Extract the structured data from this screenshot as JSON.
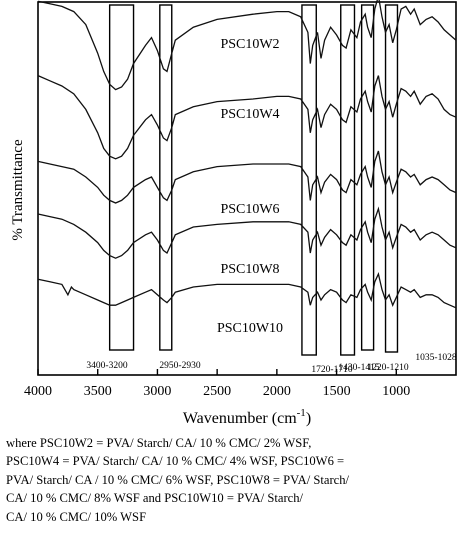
{
  "chart_data": {
    "type": "line",
    "title": "",
    "xlabel": "Wavenumber (cm",
    "xlabel_sup": "-1",
    "xlabel_close": ")",
    "ylabel": "% Transmittance",
    "xlim": [
      4000,
      500
    ],
    "x_reversed": true,
    "yticks_shown": false,
    "grid": false,
    "legend": "none",
    "x_ticks": [
      {
        "value": 4000,
        "label": "4000"
      },
      {
        "value": 3500,
        "label": "3500"
      },
      {
        "value": 3000,
        "label": "3000"
      },
      {
        "value": 2500,
        "label": "2500"
      },
      {
        "value": 2000,
        "label": "2000"
      },
      {
        "value": 1500,
        "label": "1500"
      },
      {
        "value": 1000,
        "label": "1000"
      }
    ],
    "series": [
      {
        "name": "PSC10W2",
        "offset": 6.2,
        "points": [
          [
            4000,
            0.65
          ],
          [
            3900,
            0.6
          ],
          [
            3800,
            0.55
          ],
          [
            3700,
            0.45
          ],
          [
            3600,
            0.2
          ],
          [
            3500,
            -0.35
          ],
          [
            3450,
            -0.7
          ],
          [
            3400,
            -0.95
          ],
          [
            3350,
            -1.05
          ],
          [
            3300,
            -1.0
          ],
          [
            3250,
            -0.85
          ],
          [
            3200,
            -0.55
          ],
          [
            3100,
            -0.2
          ],
          [
            3050,
            -0.05
          ],
          [
            3000,
            -0.3
          ],
          [
            2950,
            -0.65
          ],
          [
            2920,
            -0.7
          ],
          [
            2880,
            -0.35
          ],
          [
            2850,
            -0.1
          ],
          [
            2700,
            0.15
          ],
          [
            2500,
            0.3
          ],
          [
            2200,
            0.4
          ],
          [
            2000,
            0.45
          ],
          [
            1900,
            0.45
          ],
          [
            1800,
            0.35
          ],
          [
            1740,
            0.05
          ],
          [
            1720,
            -0.55
          ],
          [
            1700,
            -0.2
          ],
          [
            1660,
            0.05
          ],
          [
            1630,
            -0.45
          ],
          [
            1600,
            -0.1
          ],
          [
            1550,
            0.15
          ],
          [
            1500,
            0.0
          ],
          [
            1450,
            -0.2
          ],
          [
            1420,
            -0.25
          ],
          [
            1380,
            0.1
          ],
          [
            1330,
            -0.05
          ],
          [
            1300,
            0.25
          ],
          [
            1260,
            0.4
          ],
          [
            1240,
            0.15
          ],
          [
            1210,
            -0.05
          ],
          [
            1180,
            0.5
          ],
          [
            1150,
            0.75
          ],
          [
            1120,
            0.35
          ],
          [
            1090,
            0.05
          ],
          [
            1060,
            0.2
          ],
          [
            1030,
            -0.15
          ],
          [
            1000,
            0.1
          ],
          [
            960,
            0.5
          ],
          [
            920,
            0.55
          ],
          [
            880,
            0.4
          ],
          [
            850,
            0.5
          ],
          [
            800,
            0.2
          ],
          [
            750,
            0.3
          ],
          [
            700,
            0.35
          ],
          [
            650,
            0.25
          ],
          [
            600,
            0.1
          ],
          [
            550,
            0.0
          ],
          [
            500,
            -0.1
          ]
        ]
      },
      {
        "name": "PSC10W4",
        "offset": 4.4,
        "points": [
          [
            4000,
            0.7
          ],
          [
            3900,
            0.6
          ],
          [
            3800,
            0.5
          ],
          [
            3700,
            0.35
          ],
          [
            3600,
            0.05
          ],
          [
            3500,
            -0.4
          ],
          [
            3450,
            -0.7
          ],
          [
            3400,
            -0.85
          ],
          [
            3350,
            -0.9
          ],
          [
            3300,
            -0.85
          ],
          [
            3250,
            -0.7
          ],
          [
            3200,
            -0.45
          ],
          [
            3100,
            -0.15
          ],
          [
            3050,
            -0.05
          ],
          [
            3000,
            -0.25
          ],
          [
            2950,
            -0.5
          ],
          [
            2920,
            -0.55
          ],
          [
            2880,
            -0.3
          ],
          [
            2850,
            -0.05
          ],
          [
            2700,
            0.1
          ],
          [
            2500,
            0.2
          ],
          [
            2200,
            0.25
          ],
          [
            2000,
            0.3
          ],
          [
            1900,
            0.3
          ],
          [
            1800,
            0.25
          ],
          [
            1740,
            0.05
          ],
          [
            1720,
            -0.4
          ],
          [
            1700,
            -0.15
          ],
          [
            1660,
            0.05
          ],
          [
            1630,
            -0.3
          ],
          [
            1600,
            -0.05
          ],
          [
            1550,
            0.15
          ],
          [
            1500,
            0.05
          ],
          [
            1450,
            -0.15
          ],
          [
            1420,
            -0.2
          ],
          [
            1380,
            0.1
          ],
          [
            1330,
            0.0
          ],
          [
            1300,
            0.25
          ],
          [
            1260,
            0.4
          ],
          [
            1240,
            0.2
          ],
          [
            1210,
            0.0
          ],
          [
            1180,
            0.5
          ],
          [
            1150,
            0.7
          ],
          [
            1120,
            0.3
          ],
          [
            1090,
            0.05
          ],
          [
            1060,
            0.2
          ],
          [
            1030,
            -0.1
          ],
          [
            1000,
            0.15
          ],
          [
            960,
            0.45
          ],
          [
            920,
            0.4
          ],
          [
            880,
            0.3
          ],
          [
            850,
            0.4
          ],
          [
            800,
            0.15
          ],
          [
            750,
            0.3
          ],
          [
            700,
            0.35
          ],
          [
            650,
            0.25
          ],
          [
            600,
            0.05
          ],
          [
            550,
            -0.05
          ],
          [
            500,
            -0.1
          ]
        ]
      },
      {
        "name": "PSC10W6",
        "offset": 2.9,
        "points": [
          [
            4000,
            0.55
          ],
          [
            3900,
            0.5
          ],
          [
            3800,
            0.45
          ],
          [
            3700,
            0.4
          ],
          [
            3600,
            0.25
          ],
          [
            3500,
            0.05
          ],
          [
            3450,
            -0.1
          ],
          [
            3400,
            -0.2
          ],
          [
            3350,
            -0.25
          ],
          [
            3300,
            -0.2
          ],
          [
            3250,
            -0.1
          ],
          [
            3200,
            0.05
          ],
          [
            3100,
            0.2
          ],
          [
            3050,
            0.25
          ],
          [
            3000,
            0.05
          ],
          [
            2950,
            -0.15
          ],
          [
            2920,
            -0.2
          ],
          [
            2880,
            0.0
          ],
          [
            2850,
            0.2
          ],
          [
            2700,
            0.35
          ],
          [
            2500,
            0.45
          ],
          [
            2200,
            0.5
          ],
          [
            2000,
            0.5
          ],
          [
            1900,
            0.5
          ],
          [
            1800,
            0.45
          ],
          [
            1740,
            0.25
          ],
          [
            1720,
            -0.2
          ],
          [
            1700,
            0.1
          ],
          [
            1660,
            0.25
          ],
          [
            1630,
            -0.05
          ],
          [
            1600,
            0.15
          ],
          [
            1550,
            0.3
          ],
          [
            1500,
            0.2
          ],
          [
            1450,
            0.0
          ],
          [
            1420,
            -0.05
          ],
          [
            1380,
            0.2
          ],
          [
            1330,
            0.1
          ],
          [
            1300,
            0.3
          ],
          [
            1260,
            0.45
          ],
          [
            1240,
            0.25
          ],
          [
            1210,
            0.05
          ],
          [
            1180,
            0.55
          ],
          [
            1150,
            0.75
          ],
          [
            1120,
            0.35
          ],
          [
            1090,
            0.1
          ],
          [
            1060,
            0.25
          ],
          [
            1030,
            -0.05
          ],
          [
            1000,
            0.15
          ],
          [
            960,
            0.4
          ],
          [
            920,
            0.35
          ],
          [
            880,
            0.25
          ],
          [
            850,
            0.3
          ],
          [
            800,
            0.1
          ],
          [
            750,
            0.2
          ],
          [
            700,
            0.25
          ],
          [
            650,
            0.2
          ],
          [
            600,
            0.1
          ],
          [
            550,
            0.0
          ],
          [
            500,
            -0.05
          ]
        ]
      },
      {
        "name": "PSC10W8",
        "offset": 1.6,
        "points": [
          [
            4000,
            0.5
          ],
          [
            3900,
            0.45
          ],
          [
            3800,
            0.4
          ],
          [
            3700,
            0.3
          ],
          [
            3600,
            0.15
          ],
          [
            3500,
            -0.05
          ],
          [
            3450,
            -0.2
          ],
          [
            3400,
            -0.3
          ],
          [
            3350,
            -0.35
          ],
          [
            3300,
            -0.3
          ],
          [
            3250,
            -0.2
          ],
          [
            3200,
            -0.05
          ],
          [
            3100,
            0.1
          ],
          [
            3050,
            0.15
          ],
          [
            3000,
            0.0
          ],
          [
            2950,
            -0.2
          ],
          [
            2920,
            -0.25
          ],
          [
            2880,
            -0.05
          ],
          [
            2850,
            0.1
          ],
          [
            2700,
            0.25
          ],
          [
            2500,
            0.3
          ],
          [
            2200,
            0.35
          ],
          [
            2000,
            0.35
          ],
          [
            1900,
            0.35
          ],
          [
            1800,
            0.3
          ],
          [
            1740,
            0.15
          ],
          [
            1720,
            -0.25
          ],
          [
            1700,
            0.0
          ],
          [
            1660,
            0.15
          ],
          [
            1630,
            -0.1
          ],
          [
            1600,
            0.05
          ],
          [
            1550,
            0.2
          ],
          [
            1500,
            0.1
          ],
          [
            1450,
            -0.05
          ],
          [
            1420,
            -0.1
          ],
          [
            1380,
            0.1
          ],
          [
            1330,
            0.0
          ],
          [
            1300,
            0.2
          ],
          [
            1260,
            0.35
          ],
          [
            1240,
            0.15
          ],
          [
            1210,
            -0.05
          ],
          [
            1180,
            0.4
          ],
          [
            1150,
            0.6
          ],
          [
            1120,
            0.25
          ],
          [
            1090,
            0.0
          ],
          [
            1060,
            0.15
          ],
          [
            1030,
            -0.15
          ],
          [
            1000,
            0.05
          ],
          [
            960,
            0.3
          ],
          [
            920,
            0.25
          ],
          [
            880,
            0.15
          ],
          [
            850,
            0.2
          ],
          [
            800,
            0.0
          ],
          [
            750,
            0.1
          ],
          [
            700,
            0.15
          ],
          [
            650,
            0.1
          ],
          [
            600,
            0.0
          ],
          [
            550,
            -0.1
          ],
          [
            500,
            -0.15
          ]
        ]
      },
      {
        "name": "PSC10W10",
        "offset": 0.4,
        "points": [
          [
            4000,
            0.4
          ],
          [
            3900,
            0.35
          ],
          [
            3800,
            0.3
          ],
          [
            3750,
            0.1
          ],
          [
            3720,
            0.25
          ],
          [
            3700,
            0.2
          ],
          [
            3600,
            0.1
          ],
          [
            3500,
            0.0
          ],
          [
            3450,
            -0.05
          ],
          [
            3400,
            -0.1
          ],
          [
            3350,
            -0.1
          ],
          [
            3300,
            -0.05
          ],
          [
            3250,
            0.0
          ],
          [
            3200,
            0.05
          ],
          [
            3100,
            0.15
          ],
          [
            3050,
            0.2
          ],
          [
            3000,
            0.1
          ],
          [
            2950,
            0.0
          ],
          [
            2920,
            -0.05
          ],
          [
            2880,
            0.05
          ],
          [
            2850,
            0.15
          ],
          [
            2700,
            0.25
          ],
          [
            2500,
            0.3
          ],
          [
            2200,
            0.3
          ],
          [
            2000,
            0.3
          ],
          [
            1900,
            0.3
          ],
          [
            1800,
            0.25
          ],
          [
            1740,
            0.15
          ],
          [
            1720,
            -0.1
          ],
          [
            1700,
            0.05
          ],
          [
            1660,
            0.15
          ],
          [
            1630,
            0.0
          ],
          [
            1600,
            0.1
          ],
          [
            1550,
            0.2
          ],
          [
            1500,
            0.15
          ],
          [
            1450,
            0.0
          ],
          [
            1420,
            -0.05
          ],
          [
            1380,
            0.1
          ],
          [
            1330,
            0.05
          ],
          [
            1300,
            0.2
          ],
          [
            1260,
            0.3
          ],
          [
            1240,
            0.15
          ],
          [
            1210,
            0.0
          ],
          [
            1180,
            0.35
          ],
          [
            1150,
            0.5
          ],
          [
            1120,
            0.2
          ],
          [
            1090,
            0.0
          ],
          [
            1060,
            0.1
          ],
          [
            1030,
            -0.1
          ],
          [
            1000,
            0.05
          ],
          [
            960,
            0.25
          ],
          [
            920,
            0.2
          ],
          [
            880,
            0.15
          ],
          [
            850,
            0.2
          ],
          [
            800,
            0.05
          ],
          [
            750,
            0.1
          ],
          [
            700,
            0.1
          ],
          [
            650,
            0.05
          ],
          [
            600,
            -0.05
          ],
          [
            550,
            -0.1
          ],
          [
            500,
            -0.15
          ]
        ]
      }
    ],
    "bands": [
      {
        "label": "3400-3200",
        "from": 3400,
        "to": 3200
      },
      {
        "label": "2950-2930",
        "from": 2980,
        "to": 2880
      },
      {
        "label": "1720-1710",
        "from": 1790,
        "to": 1670
      },
      {
        "label": "1430-1415",
        "from": 1465,
        "to": 1350
      },
      {
        "label": "1220-1210",
        "from": 1290,
        "to": 1190
      },
      {
        "label": "1035-1028",
        "from": 1090,
        "to": 990
      }
    ]
  },
  "caption": {
    "lines": [
      "where PSC10W2 = PVA/ Starch/ CA/ 10 % CMC/ 2% WSF,",
      "PSC10W4 = PVA/ Starch/ CA/ 10 % CMC/ 4% WSF, PSC10W6 =",
      "PVA/ Starch/ CA / 10 % CMC/ 6% WSF, PSC10W8 = PVA/ Starch/",
      "CA/ 10 % CMC/ 8% WSF and PSC10W10 = PVA/ Starch/",
      "CA/ 10 % CMC/ 10% WSF"
    ]
  }
}
